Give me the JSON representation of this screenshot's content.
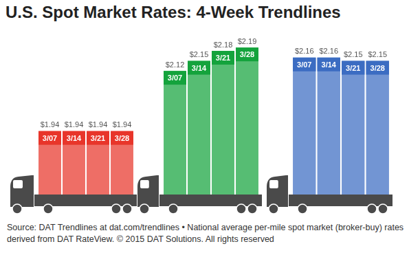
{
  "title": "U.S. Spot Market Rates: 4-Week Trendlines",
  "annotations": [
    "Source: DAT Trendlines at dat.com/trendlines • National average per-mile spot market (broker-buy) rates derived from DAT RateView. © 2015 DAT Solutions. All rights reserved"
  ],
  "chart_data": [
    {
      "type": "bar",
      "categories": [
        "3/07",
        "3/14",
        "3/21",
        "3/28"
      ],
      "values": [
        1.94,
        1.94,
        1.94,
        1.94
      ],
      "value_labels": [
        "$1.94",
        "$1.94",
        "$1.94",
        "$1.94"
      ],
      "color": "#e8352a",
      "ylim": [
        1.75,
        2.25
      ],
      "grid": false,
      "data_labels": true,
      "tick_labels": false
    },
    {
      "type": "bar",
      "categories": [
        "3/07",
        "3/14",
        "3/21",
        "3/28"
      ],
      "values": [
        2.12,
        2.15,
        2.18,
        2.19
      ],
      "value_labels": [
        "$2.12",
        "$2.15",
        "$2.18",
        "$2.19"
      ],
      "color": "#14a33c",
      "ylim": [
        1.75,
        2.25
      ],
      "grid": false,
      "data_labels": true,
      "tick_labels": false
    },
    {
      "type": "bar",
      "categories": [
        "3/07",
        "3/14",
        "3/21",
        "3/28"
      ],
      "values": [
        2.16,
        2.16,
        2.15,
        2.15
      ],
      "value_labels": [
        "$2.16",
        "$2.16",
        "$2.15",
        "$2.15"
      ],
      "color": "#3b6cc2",
      "ylim": [
        1.75,
        2.25
      ],
      "grid": false,
      "data_labels": true,
      "tick_labels": false
    }
  ]
}
